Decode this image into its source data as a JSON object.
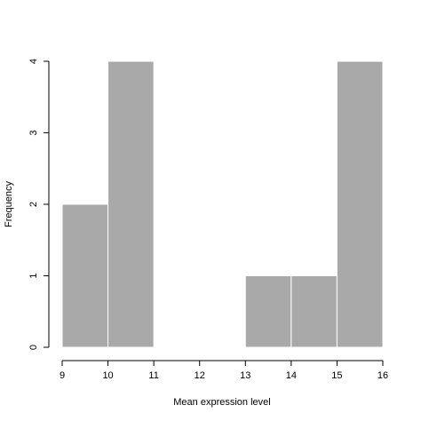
{
  "chart_data": {
    "type": "bar",
    "title": "",
    "xlabel": "Mean expression level",
    "ylabel": "Frequency",
    "bins": [
      {
        "x0": 9,
        "x1": 10,
        "count": 2
      },
      {
        "x0": 10,
        "x1": 11,
        "count": 4
      },
      {
        "x0": 11,
        "x1": 12,
        "count": 0
      },
      {
        "x0": 12,
        "x1": 13,
        "count": 0
      },
      {
        "x0": 13,
        "x1": 14,
        "count": 1
      },
      {
        "x0": 14,
        "x1": 15,
        "count": 1
      },
      {
        "x0": 15,
        "x1": 16,
        "count": 4
      }
    ],
    "xlim": [
      9,
      16
    ],
    "ylim": [
      0,
      4
    ],
    "x_ticks": [
      "9",
      "10",
      "11",
      "12",
      "13",
      "14",
      "15",
      "16"
    ],
    "y_ticks": [
      "0",
      "1",
      "2",
      "3",
      "4"
    ],
    "bar_color": "#a9a9a9",
    "grid": false
  }
}
